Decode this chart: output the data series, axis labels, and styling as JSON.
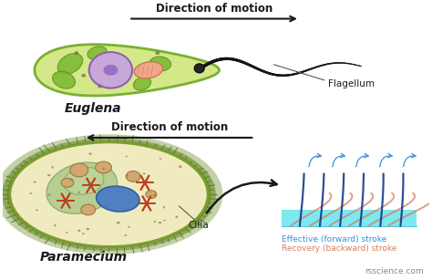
{
  "bg_color": "#ffffff",
  "euglena_body_color": "#d4e88a",
  "euglena_border_color": "#7ab030",
  "euglena_nucleus_color": "#c8a8d8",
  "euglena_nucleus_border": "#9060b0",
  "paramecium_body_color": "#f0eabf",
  "paramecium_border_color": "#7a9e30",
  "paramecium_outer_color": "#6a8a28",
  "paramecium_hair_color": "#5a7820",
  "water_color": "#7de8f0",
  "effective_stroke_color": "#3a8ee0",
  "recovery_stroke_color": "#d08060",
  "dark_color": "#1a1a1a",
  "flagellum_label": "Flagellum",
  "cilia_label": "Cilia",
  "euglena_label": "Euglena",
  "paramecium_label": "Paramecium",
  "direction_label": "Direction of motion",
  "effective_label": "Effective (forward) stroke",
  "recovery_label": "Recovery (backward) stroke",
  "watermark": "rsscience.com",
  "chloroplast_color": "#7ab830",
  "chloroplast_dark": "#5a9020",
  "mito_color": "#f0a888",
  "mito_border": "#c07858",
  "gullet_color": "#88b870",
  "gullet_border": "#608850",
  "macro_color": "#5080c0",
  "macro_border": "#3060a0",
  "star_color": "#c04020",
  "vacuole_color": "#d0a870",
  "vacuole_border": "#a07840"
}
